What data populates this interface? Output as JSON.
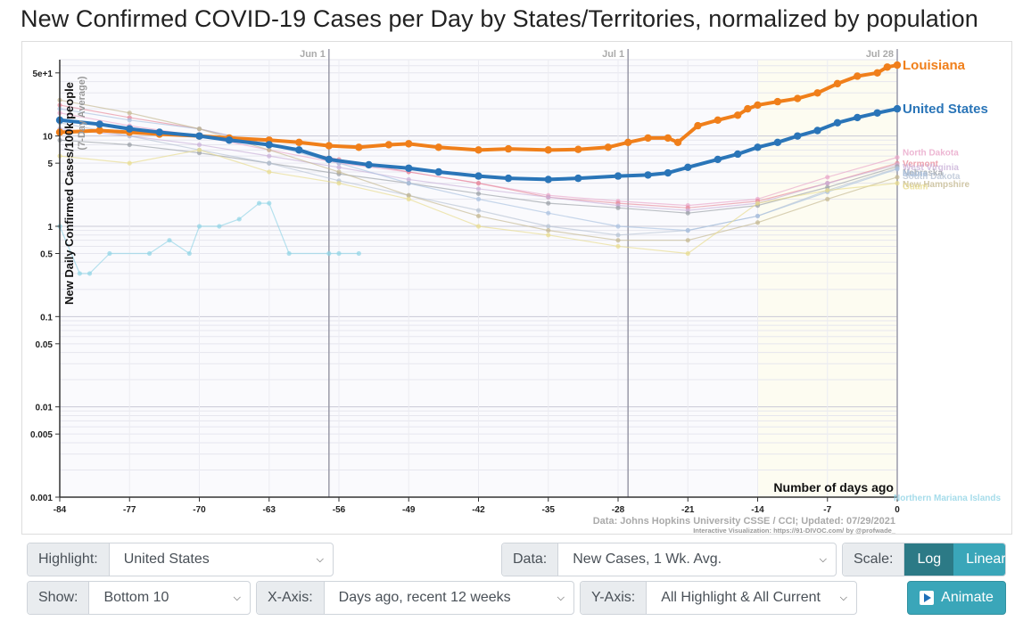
{
  "page": {
    "title": "New Confirmed COVID-19 Cases per Day by States/Territories, normalized by population"
  },
  "controls": {
    "highlight_label": "Highlight:",
    "highlight_value": "United States",
    "data_label": "Data:",
    "data_value": "New Cases, 1 Wk. Avg.",
    "scale_label": "Scale:",
    "scale_log": "Log",
    "scale_linear": "Linear",
    "show_label": "Show:",
    "show_value": "Bottom 10",
    "xaxis_label": "X-Axis:",
    "xaxis_value": "Days ago, recent 12 weeks",
    "yaxis_label": "Y-Axis:",
    "yaxis_value": "All Highlight & All Current",
    "animate_label": "Animate",
    "accent_color": "#31909f"
  },
  "chart_data": {
    "type": "line",
    "ylabel": "New Daily Confirmed Cases/100k people",
    "ylabel_sub": "(7-Day Average)",
    "xlabel": "Number of days ago",
    "y_scale": "log",
    "ylim": [
      0.001,
      70
    ],
    "xlim": [
      -84,
      0
    ],
    "x_ticks": [
      -84,
      -77,
      -70,
      -63,
      -56,
      -49,
      -42,
      -35,
      -28,
      -21,
      -14,
      -7,
      0
    ],
    "y_ticks": [
      "5e+1",
      "10",
      "5",
      "1",
      "0.5",
      "0.1",
      "0.05",
      "0.01",
      "0.005",
      "0.001"
    ],
    "date_markers": [
      {
        "label": "Jun 1",
        "x": -57
      },
      {
        "label": "Jul 1",
        "x": -27
      },
      {
        "label": "Jul 28",
        "x": 0
      }
    ],
    "source": "Data: Johns Hopkins University CSSE / CCI; Updated: 07/29/2021",
    "credit": "Interactive Visualization: https://91-DIVOC.com/ by @profwade_",
    "grid": true,
    "series": [
      {
        "name": "Louisiana",
        "color": "#f07f1a",
        "highlight": true,
        "x": [
          -84,
          -80,
          -77,
          -74,
          -70,
          -67,
          -63,
          -60,
          -57,
          -54,
          -51,
          -49,
          -46,
          -42,
          -39,
          -35,
          -32,
          -29,
          -27,
          -25,
          -23,
          -22,
          -20,
          -18,
          -16,
          -15,
          -14,
          -12,
          -10,
          -8,
          -6,
          -4,
          -2,
          -1,
          0
        ],
        "y": [
          11,
          11.5,
          11,
          10.5,
          10,
          9.5,
          9,
          8.5,
          7.8,
          7.5,
          8,
          8.2,
          7.5,
          7.0,
          7.2,
          7.0,
          7.1,
          7.5,
          8.5,
          9.5,
          9.5,
          8.5,
          13,
          15,
          17,
          20,
          22,
          24,
          26,
          30,
          38,
          46,
          50,
          58,
          61
        ]
      },
      {
        "name": "United States",
        "color": "#2a75b8",
        "highlight": true,
        "x": [
          -84,
          -80,
          -77,
          -74,
          -70,
          -67,
          -63,
          -60,
          -57,
          -53,
          -49,
          -46,
          -42,
          -39,
          -35,
          -32,
          -28,
          -25,
          -23,
          -21,
          -18,
          -16,
          -14,
          -12,
          -10,
          -8,
          -6,
          -4,
          -2,
          0
        ],
        "y": [
          15,
          13.5,
          12,
          11,
          10,
          9,
          8,
          7,
          5.5,
          4.8,
          4.4,
          4.0,
          3.6,
          3.4,
          3.3,
          3.4,
          3.6,
          3.7,
          3.9,
          4.5,
          5.5,
          6.3,
          7.5,
          8.5,
          10,
          11.5,
          14,
          16,
          18,
          20
        ]
      },
      {
        "name": "North Dakota",
        "color": "#e9a6c9",
        "highlight": false,
        "x": [
          -84,
          -77,
          -70,
          -63,
          -56,
          -49,
          -42,
          -35,
          -28,
          -21,
          -14,
          -7,
          0
        ],
        "y": [
          18,
          13,
          10,
          7,
          5,
          4,
          3,
          2.2,
          1.9,
          1.7,
          2.0,
          3.5,
          5.8
        ]
      },
      {
        "name": "Vermont",
        "color": "#e88a9a",
        "highlight": false,
        "x": [
          -84,
          -77,
          -70,
          -63,
          -56,
          -49,
          -42,
          -35,
          -28,
          -21,
          -14,
          -7,
          0
        ],
        "y": [
          22,
          16,
          12,
          8,
          5.5,
          4,
          3,
          2.1,
          1.8,
          1.6,
          1.9,
          3,
          5
        ]
      },
      {
        "name": "West Virginia",
        "color": "#c9b0d8",
        "highlight": false,
        "x": [
          -84,
          -77,
          -70,
          -63,
          -56,
          -49,
          -42,
          -35,
          -28,
          -21,
          -14,
          -7,
          0
        ],
        "y": [
          12,
          10,
          8,
          6,
          4.5,
          3.3,
          2.6,
          2.1,
          1.7,
          1.5,
          1.8,
          3,
          4.8
        ]
      },
      {
        "name": "Nebraska",
        "color": "#9aa0a6",
        "highlight": false,
        "x": [
          -84,
          -77,
          -70,
          -63,
          -56,
          -49,
          -42,
          -35,
          -28,
          -21,
          -14,
          -7,
          0
        ],
        "y": [
          9,
          8,
          6.5,
          5,
          3.8,
          3,
          2.3,
          1.8,
          1.6,
          1.4,
          1.7,
          2.7,
          4.6
        ]
      },
      {
        "name": "South Dakota",
        "color": "#b7c3d4",
        "highlight": false,
        "x": [
          -84,
          -77,
          -70,
          -63,
          -56,
          -49,
          -42,
          -35,
          -28,
          -21,
          -14,
          -7,
          0
        ],
        "y": [
          14,
          10,
          7,
          5,
          3.2,
          2.2,
          1.5,
          1.0,
          0.8,
          0.9,
          1.3,
          2.5,
          4.4
        ]
      },
      {
        "name": "Maine",
        "color": "#a9c1e0",
        "highlight": false,
        "x": [
          -84,
          -77,
          -70,
          -63,
          -56,
          -49,
          -42,
          -35,
          -28,
          -21,
          -14,
          -7,
          0
        ],
        "y": [
          20,
          15,
          12,
          8,
          5,
          3,
          2,
          1.4,
          1.0,
          0.9,
          1.3,
          2.4,
          4.3
        ]
      },
      {
        "name": "New Hampshire",
        "color": "#c4b890",
        "highlight": false,
        "x": [
          -84,
          -77,
          -70,
          -63,
          -56,
          -49,
          -42,
          -35,
          -28,
          -21,
          -14,
          -7,
          0
        ],
        "y": [
          25,
          18,
          12,
          7,
          4,
          2.2,
          1.3,
          0.9,
          0.7,
          0.7,
          1.1,
          2,
          3.5
        ]
      },
      {
        "name": "Guam",
        "color": "#e8dc8c",
        "highlight": false,
        "x": [
          -84,
          -77,
          -70,
          -63,
          -56,
          -49,
          -42,
          -35,
          -28,
          -21,
          -14,
          -7,
          0
        ],
        "y": [
          6,
          5,
          7,
          4,
          3,
          2,
          1,
          0.8,
          0.6,
          0.5,
          1.8,
          2.5,
          3
        ]
      },
      {
        "name": "Northern Mariana Islands",
        "color": "#90d4e6",
        "highlight": false,
        "x": [
          -84,
          -82,
          -81,
          -79,
          -75,
          -73,
          -71,
          -70,
          -68,
          -66,
          -64,
          -63,
          -61,
          -57,
          -56,
          -54
        ],
        "y": [
          1,
          0.3,
          0.3,
          0.5,
          0.5,
          0.7,
          0.5,
          1,
          1,
          1.2,
          1.8,
          1.8,
          0.5,
          0.5,
          0.5,
          0.5
        ]
      }
    ]
  }
}
